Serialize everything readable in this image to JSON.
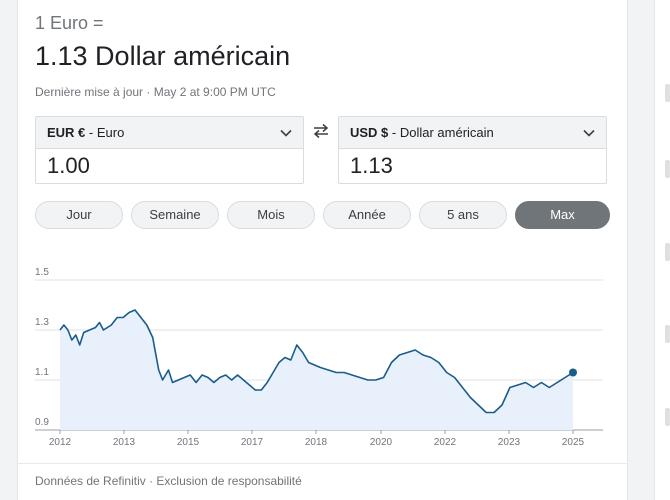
{
  "header": {
    "base_label": "1 Euro =",
    "result": "1.13 Dollar américain",
    "updated": "Dernière mise à jour · May 2 at 9:00 PM UTC"
  },
  "from": {
    "code": "EUR €",
    "name": " - Euro",
    "value": "1.00"
  },
  "to": {
    "code": "USD $",
    "name": " - Dollar américain",
    "value": "1.13"
  },
  "tabs": [
    {
      "label": "Jour",
      "active": false
    },
    {
      "label": "Semaine",
      "active": false
    },
    {
      "label": "Mois",
      "active": false
    },
    {
      "label": "Année",
      "active": false
    },
    {
      "label": "5 ans",
      "active": false
    },
    {
      "label": "Max",
      "active": true
    }
  ],
  "footer": {
    "text": "Données de Refinitiv · Exclusion de responsabilité"
  },
  "colors": {
    "line": "#1a5c8a",
    "fill": "#e8f1fb",
    "grid": "#e0e0e0",
    "active_tab": "#70757a"
  },
  "chart_data": {
    "type": "area",
    "x_ticks": [
      "2012",
      "2013",
      "2015",
      "2017",
      "2018",
      "2020",
      "2022",
      "2023",
      "2025"
    ],
    "y_ticks": [
      "1.5",
      "1.3",
      "1.1",
      "0.9"
    ],
    "ylim": [
      0.9,
      1.5
    ],
    "xlim": [
      2012.0,
      2025.0
    ],
    "grid": true,
    "x": [
      2012.0,
      2012.1,
      2012.2,
      2012.3,
      2012.4,
      2012.5,
      2012.6,
      2012.75,
      2012.9,
      2013.0,
      2013.1,
      2013.2,
      2013.3,
      2013.45,
      2013.6,
      2013.75,
      2013.9,
      2014.05,
      2014.2,
      2014.35,
      2014.5,
      2014.6,
      2014.75,
      2014.85,
      2015.0,
      2015.15,
      2015.3,
      2015.45,
      2015.6,
      2015.75,
      2015.9,
      2016.05,
      2016.2,
      2016.35,
      2016.5,
      2016.65,
      2016.8,
      2016.95,
      2017.1,
      2017.25,
      2017.4,
      2017.55,
      2017.7,
      2017.85,
      2018.0,
      2018.15,
      2018.3,
      2018.45,
      2018.6,
      2018.8,
      2019.0,
      2019.2,
      2019.4,
      2019.6,
      2019.8,
      2020.0,
      2020.2,
      2020.4,
      2020.6,
      2020.8,
      2021.0,
      2021.2,
      2021.4,
      2021.6,
      2021.8,
      2022.0,
      2022.2,
      2022.4,
      2022.6,
      2022.8,
      2023.0,
      2023.2,
      2023.4,
      2023.6,
      2023.8,
      2024.0,
      2024.2,
      2024.4,
      2024.6,
      2024.8,
      2025.0
    ],
    "y": [
      1.3,
      1.32,
      1.3,
      1.26,
      1.28,
      1.24,
      1.29,
      1.3,
      1.31,
      1.33,
      1.3,
      1.31,
      1.32,
      1.35,
      1.35,
      1.37,
      1.38,
      1.35,
      1.32,
      1.27,
      1.14,
      1.1,
      1.14,
      1.09,
      1.1,
      1.11,
      1.12,
      1.09,
      1.12,
      1.11,
      1.09,
      1.11,
      1.12,
      1.1,
      1.12,
      1.1,
      1.08,
      1.06,
      1.06,
      1.09,
      1.13,
      1.17,
      1.19,
      1.18,
      1.24,
      1.21,
      1.17,
      1.16,
      1.15,
      1.14,
      1.13,
      1.13,
      1.12,
      1.11,
      1.1,
      1.1,
      1.11,
      1.17,
      1.2,
      1.21,
      1.22,
      1.2,
      1.19,
      1.17,
      1.13,
      1.11,
      1.07,
      1.03,
      1.0,
      0.97,
      0.97,
      1.0,
      1.07,
      1.08,
      1.09,
      1.07,
      1.09,
      1.07,
      1.09,
      1.11,
      1.13
    ]
  }
}
